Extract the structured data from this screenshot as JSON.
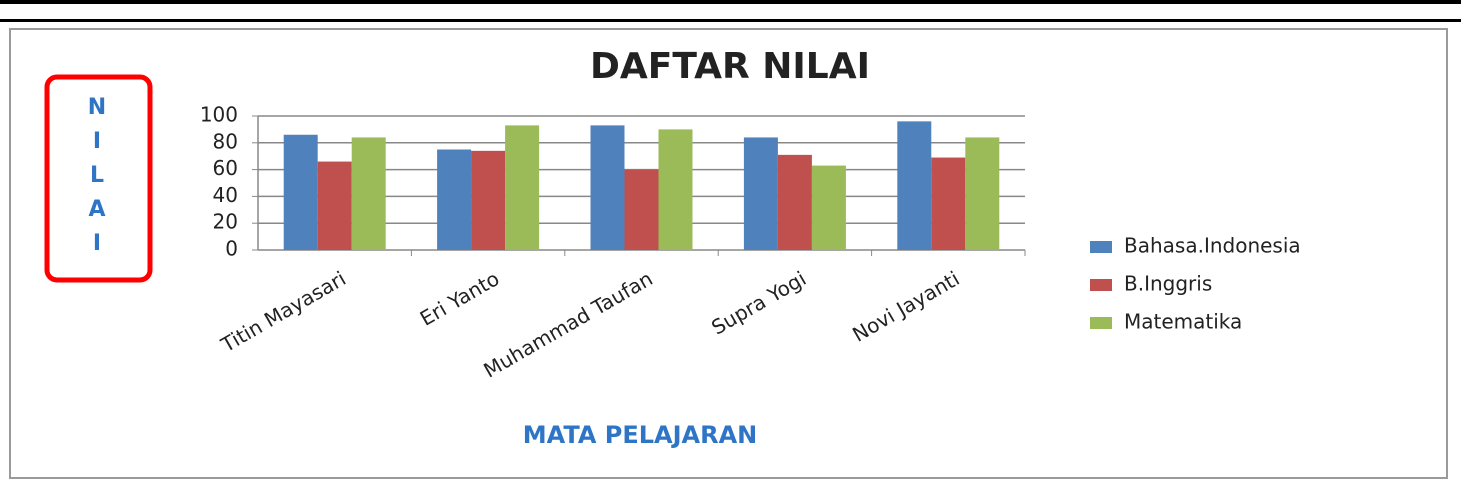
{
  "chart_data": {
    "type": "bar",
    "title": "DAFTAR NILAI",
    "y_label": "NILAI",
    "x_label": "MATA PELAJARAN",
    "categories": [
      "Titin Mayasari",
      "Eri Yanto",
      "Muhammad  Taufan",
      "Supra Yogi",
      "Novi Jayanti"
    ],
    "series": [
      {
        "name": "Bahasa.Indonesia",
        "color": "#4f81bd",
        "values": [
          86,
          75,
          93,
          84,
          96
        ]
      },
      {
        "name": "B.Inggris",
        "color": "#c0504d",
        "values": [
          66,
          74,
          60,
          71,
          69
        ]
      },
      {
        "name": "Matematika",
        "color": "#9bbb59",
        "values": [
          84,
          93,
          90,
          63,
          84
        ]
      }
    ],
    "ylim": [
      0,
      100
    ],
    "yticks": [
      0,
      20,
      40,
      60,
      80,
      100
    ],
    "grid": true,
    "legend": "right"
  }
}
